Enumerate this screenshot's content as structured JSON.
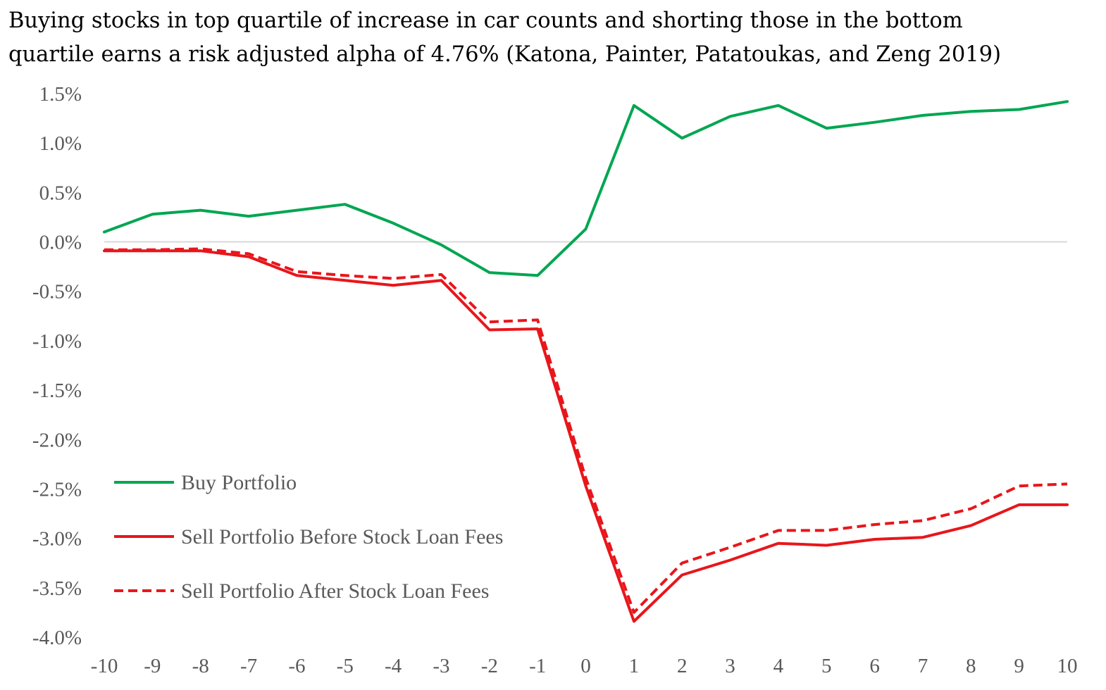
{
  "chart_data": {
    "type": "line",
    "title": "Buying stocks in top quartile of increase in car counts and shorting those in the bottom\nquartile earns a risk adjusted alpha of 4.76% (Katona, Painter, Patatoukas, and Zeng 2019)",
    "xlabel": "",
    "ylabel": "",
    "x": [
      -10,
      -9,
      -8,
      -7,
      -6,
      -5,
      -4,
      -3,
      -2,
      -1,
      0,
      1,
      2,
      3,
      4,
      5,
      6,
      7,
      8,
      9,
      10
    ],
    "x_tick_labels": [
      "-10",
      "-9",
      "-8",
      "-7",
      "-6",
      "-5",
      "-4",
      "-3",
      "-2",
      "-1",
      "0",
      "1",
      "2",
      "3",
      "4",
      "5",
      "6",
      "7",
      "8",
      "9",
      "10"
    ],
    "ylim": [
      -4.0,
      1.5
    ],
    "y_ticks": [
      1.5,
      1.0,
      0.5,
      0.0,
      -0.5,
      -1.0,
      -1.5,
      -2.0,
      -2.5,
      -3.0,
      -3.5,
      -4.0
    ],
    "y_tick_labels": [
      "1.5%",
      "1.0%",
      "0.5%",
      "0.0%",
      "-0.5%",
      "-1.0%",
      "-1.5%",
      "-2.0%",
      "-2.5%",
      "-3.0%",
      "-3.5%",
      "-4.0%"
    ],
    "grid": false,
    "zero_line": true,
    "legend_position": "bottom-left",
    "series": [
      {
        "name": "Buy Portfolio",
        "color": "#00A651",
        "dash": "solid",
        "values": [
          0.1,
          0.28,
          0.32,
          0.26,
          0.32,
          0.38,
          0.19,
          -0.03,
          -0.31,
          -0.34,
          0.13,
          1.38,
          1.05,
          1.27,
          1.38,
          1.15,
          1.21,
          1.28,
          1.32,
          1.34,
          1.42
        ]
      },
      {
        "name": "Sell Portfolio Before Stock Loan Fees",
        "color": "#E8161B",
        "dash": "solid",
        "values": [
          -0.09,
          -0.09,
          -0.09,
          -0.15,
          -0.34,
          -0.39,
          -0.44,
          -0.39,
          -0.89,
          -0.88,
          -2.47,
          -3.84,
          -3.37,
          -3.22,
          -3.05,
          -3.07,
          -3.01,
          -2.99,
          -2.87,
          -2.66,
          -2.66
        ]
      },
      {
        "name": "Sell Portfolio After Stock Loan Fees",
        "color": "#E8161B",
        "dash": "dashed",
        "values": [
          -0.08,
          -0.08,
          -0.07,
          -0.12,
          -0.3,
          -0.34,
          -0.37,
          -0.33,
          -0.81,
          -0.79,
          -2.39,
          -3.75,
          -3.25,
          -3.09,
          -2.92,
          -2.92,
          -2.86,
          -2.82,
          -2.7,
          -2.47,
          -2.45
        ]
      }
    ]
  }
}
